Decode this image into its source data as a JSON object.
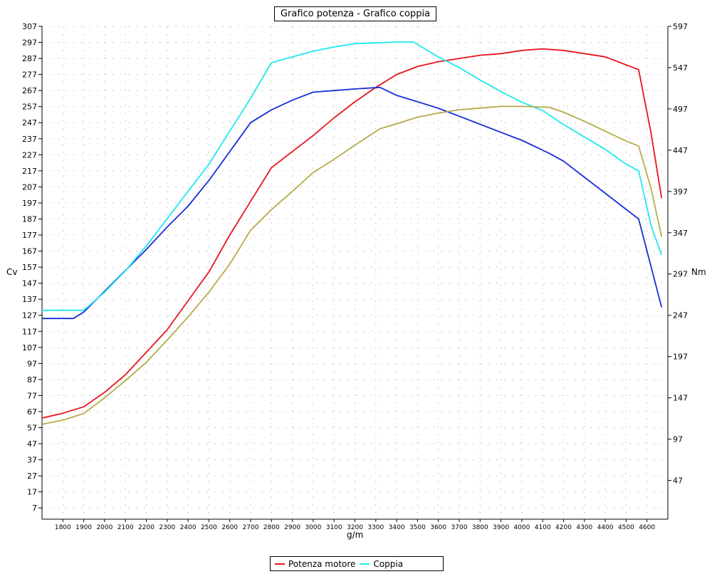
{
  "chart_data": {
    "type": "line",
    "title": "Grafico potenza - Grafico coppia",
    "xlabel": "g/m",
    "ylabel_left": "Cv",
    "ylabel_right": "Nm",
    "xlim": [
      1700,
      4700
    ],
    "ylim_left": [
      0,
      307
    ],
    "ylim_right": [
      0,
      597
    ],
    "x_ticks": [
      1800,
      1900,
      2000,
      2100,
      2200,
      2300,
      2400,
      2500,
      2600,
      2700,
      2800,
      2900,
      3000,
      3100,
      3200,
      3300,
      3400,
      3500,
      3600,
      3700,
      3800,
      3900,
      4000,
      4100,
      4200,
      4300,
      4400,
      4500,
      4600
    ],
    "y_ticks_left": [
      7,
      17,
      27,
      37,
      47,
      57,
      67,
      77,
      87,
      97,
      107,
      117,
      127,
      137,
      147,
      157,
      167,
      177,
      187,
      197,
      207,
      217,
      227,
      237,
      247,
      257,
      267,
      277,
      287,
      297,
      307
    ],
    "y_ticks_right": [
      47,
      97,
      147,
      197,
      247,
      297,
      347,
      397,
      447,
      497,
      547,
      597
    ],
    "grid": true,
    "legend_position": "bottom-center",
    "legend": [
      {
        "label": "Potenza motore",
        "color": "#e8141b"
      },
      {
        "label": "Coppia",
        "color": "#1ee8ee"
      }
    ],
    "series": [
      {
        "name": "Potenza motore",
        "axis": "left",
        "color": "#e8141b",
        "x": [
          1700,
          1800,
          1900,
          2000,
          2100,
          2200,
          2300,
          2400,
          2500,
          2600,
          2700,
          2800,
          2900,
          3000,
          3100,
          3200,
          3300,
          3400,
          3500,
          3600,
          3700,
          3800,
          3900,
          4000,
          4100,
          4200,
          4300,
          4400,
          4500,
          4560,
          4620,
          4670
        ],
        "values": [
          63,
          66,
          70,
          79,
          90,
          104,
          118,
          136,
          154,
          177,
          198,
          219,
          229,
          239,
          250,
          260,
          269,
          277,
          282,
          285,
          287,
          289,
          290,
          292,
          293,
          292,
          290,
          288,
          283,
          280,
          240,
          200
        ]
      },
      {
        "name": "",
        "axis": "left",
        "color": "#1a2ed6",
        "x": [
          1700,
          1850,
          1900,
          2000,
          2100,
          2200,
          2300,
          2400,
          2500,
          2600,
          2700,
          2800,
          2900,
          3000,
          3100,
          3200,
          3320,
          3400,
          3500,
          3600,
          3700,
          3800,
          3900,
          4000,
          4130,
          4200,
          4300,
          4400,
          4500,
          4560,
          4620,
          4670
        ],
        "values": [
          125,
          125,
          129,
          142,
          155,
          168,
          182,
          195,
          211,
          229,
          247,
          255,
          261,
          266,
          267,
          268,
          269,
          264,
          260,
          256,
          251,
          246,
          241,
          236,
          228,
          223,
          213,
          203,
          193,
          187,
          157,
          132
        ]
      },
      {
        "name": "Coppia",
        "axis": "right",
        "color": "#1ee8ee",
        "x": [
          1700,
          1800,
          1900,
          2000,
          2100,
          2200,
          2300,
          2400,
          2500,
          2600,
          2700,
          2800,
          2900,
          3000,
          3100,
          3200,
          3300,
          3400,
          3480,
          3600,
          3700,
          3800,
          3900,
          4000,
          4100,
          4200,
          4300,
          4400,
          4500,
          4560,
          4620,
          4670
        ],
        "values": [
          253,
          253,
          253,
          275,
          301,
          331,
          364,
          397,
          430,
          470,
          510,
          553,
          560,
          567,
          572,
          576,
          577,
          578,
          578,
          560,
          547,
          532,
          518,
          505,
          495,
          478,
          463,
          448,
          430,
          422,
          355,
          320
        ]
      },
      {
        "name": "",
        "axis": "right",
        "color": "#b6ab48",
        "x": [
          1700,
          1800,
          1900,
          2000,
          2100,
          2200,
          2300,
          2400,
          2500,
          2600,
          2700,
          2800,
          2900,
          3000,
          3100,
          3200,
          3320,
          3400,
          3500,
          3600,
          3700,
          3800,
          3900,
          4000,
          4130,
          4200,
          4300,
          4400,
          4500,
          4560,
          4620,
          4670
        ],
        "values": [
          115,
          120,
          128,
          147,
          168,
          190,
          217,
          245,
          275,
          309,
          350,
          375,
          397,
          420,
          436,
          453,
          473,
          479,
          487,
          492,
          496,
          498,
          500,
          500,
          499,
          493,
          482,
          470,
          458,
          452,
          400,
          342
        ]
      }
    ]
  }
}
